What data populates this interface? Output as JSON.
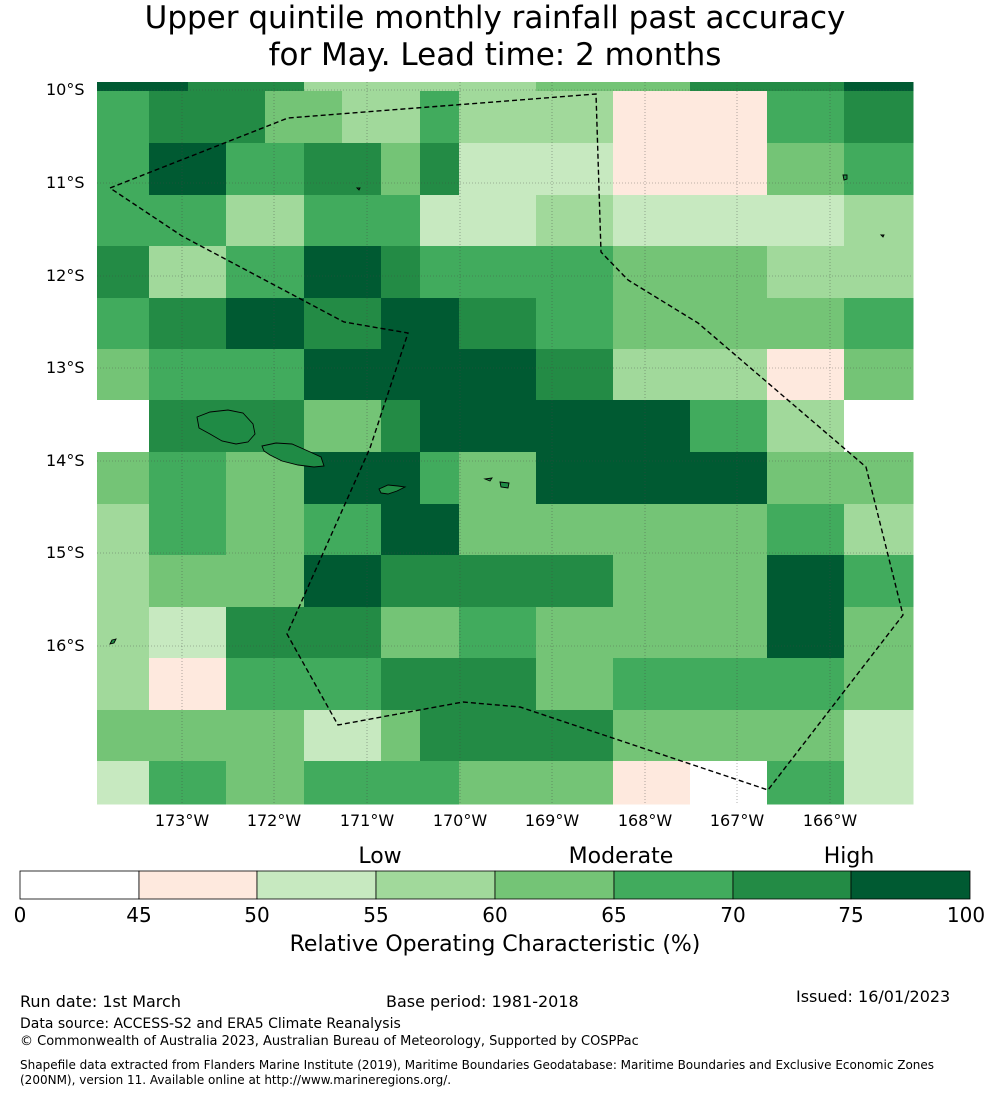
{
  "title": {
    "line1": "Upper quintile monthly rainfall past accuracy",
    "line2": "for May. Lead time: 2 months"
  },
  "map": {
    "lat_labels": [
      "10°S",
      "11°S",
      "12°S",
      "13°S",
      "14°S",
      "15°S",
      "16°S"
    ],
    "lon_labels": [
      "173°W",
      "172°W",
      "171°W",
      "170°W",
      "169°W",
      "168°W",
      "167°W",
      "166°W"
    ],
    "cell_rows": [
      [
        75,
        75,
        70,
        70,
        72,
        55,
        55,
        55,
        55,
        55,
        60,
        60,
        70,
        70,
        75
      ],
      [
        65,
        72,
        72,
        72,
        62,
        62,
        57,
        57,
        67,
        57,
        57,
        47,
        47,
        67,
        72
      ],
      [
        65,
        77,
        77,
        67,
        67,
        72,
        72,
        62,
        72,
        52,
        52,
        47,
        47,
        62,
        67
      ],
      [
        65,
        67,
        67,
        57,
        57,
        67,
        67,
        67,
        52,
        52,
        57,
        52,
        52,
        52,
        57
      ],
      [
        72,
        57,
        57,
        67,
        67,
        77,
        77,
        72,
        67,
        67,
        67,
        62,
        62,
        57,
        57
      ],
      [
        67,
        72,
        72,
        77,
        77,
        72,
        72,
        77,
        77,
        72,
        67,
        62,
        62,
        62,
        67
      ],
      [
        62,
        67,
        67,
        67,
        67,
        77,
        77,
        77,
        77,
        77,
        72,
        57,
        57,
        47,
        62
      ],
      [
        null,
        72,
        72,
        72,
        72,
        62,
        62,
        72,
        77,
        77,
        77,
        77,
        67,
        57,
        null
      ],
      [
        62,
        67,
        67,
        62,
        62,
        77,
        77,
        77,
        67,
        62,
        77,
        77,
        77,
        62,
        62
      ],
      [
        57,
        67,
        67,
        62,
        62,
        67,
        67,
        77,
        77,
        62,
        62,
        62,
        62,
        67,
        57
      ],
      [
        57,
        62,
        62,
        62,
        62,
        77,
        77,
        72,
        72,
        72,
        72,
        62,
        62,
        77,
        67
      ],
      [
        57,
        52,
        52,
        72,
        72,
        72,
        72,
        62,
        62,
        67,
        62,
        62,
        62,
        77,
        62
      ],
      [
        57,
        47,
        47,
        67,
        67,
        67,
        67,
        72,
        72,
        72,
        62,
        67,
        67,
        67,
        62
      ],
      [
        62,
        62,
        62,
        62,
        62,
        52,
        52,
        62,
        72,
        72,
        72,
        62,
        62,
        62,
        52
      ],
      [
        52,
        67,
        67,
        62,
        62,
        67,
        67,
        67,
        67,
        62,
        62,
        47,
        null,
        67,
        52
      ]
    ]
  },
  "colorbar": {
    "categories": [
      "Low",
      "Moderate",
      "High"
    ],
    "ticks": [
      "0",
      "45",
      "50",
      "55",
      "60",
      "65",
      "70",
      "75",
      "100"
    ],
    "colors": [
      "#ffffff",
      "#fee9de",
      "#c7e9c0",
      "#a1d99b",
      "#74c476",
      "#41ab5d",
      "#238b45",
      "#005a32"
    ],
    "label": "Relative Operating Characteristic (%)"
  },
  "footer": {
    "run_date": "Run date: 1st March",
    "base_period": "Base period: 1981-2018",
    "issued": "Issued: 16/01/2023",
    "data_source": "Data source: ACCESS-S2 and ERA5 Climate Reanalysis",
    "copyright": "© Commonwealth of Australia 2023, Australian Bureau of Meteorology, Supported by COSPPac",
    "shapefile_line1": "Shapefile data extracted from Flanders Marine Institute (2019), Maritime Boundaries Geodatabase: Maritime Boundaries and Exclusive Economic Zones",
    "shapefile_line2": "(200NM), version 11. Available online at http://www.marineregions.org/."
  }
}
